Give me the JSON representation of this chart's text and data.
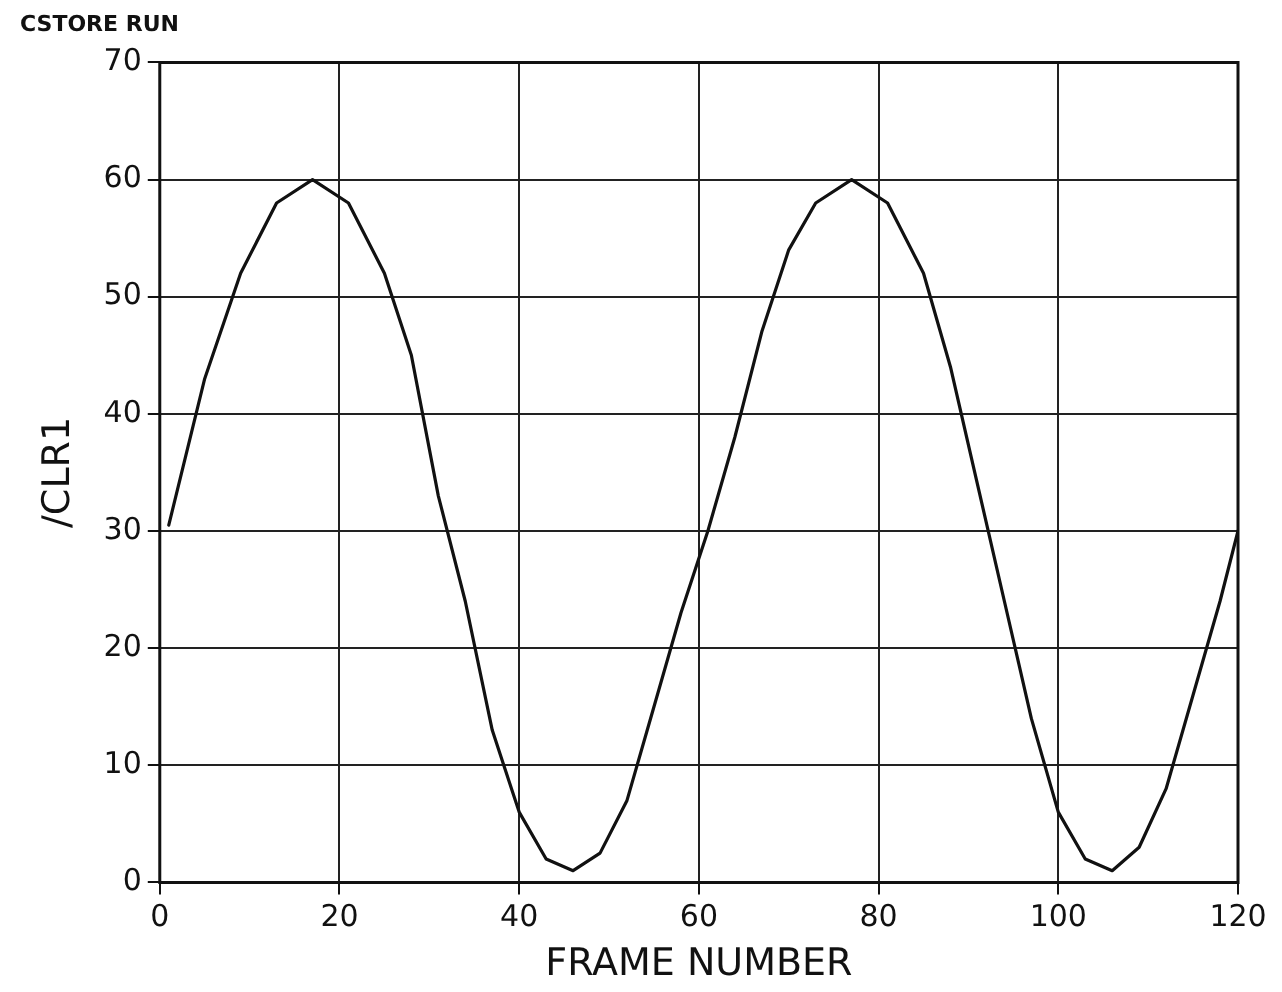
{
  "chart_data": {
    "type": "line",
    "title": "CSTORE RUN",
    "xlabel": "FRAME NUMBER",
    "ylabel": "/CLR1",
    "xlim": [
      0,
      120
    ],
    "xticks": [
      0,
      20,
      40,
      60,
      80,
      100,
      120
    ],
    "ylim": [
      0,
      70
    ],
    "yticks": [
      0,
      10,
      20,
      30,
      40,
      50,
      60,
      70
    ],
    "grid": true,
    "marker": "none",
    "line_style": "solid",
    "series": [
      {
        "color": "#111111",
        "x": [
          1,
          5,
          9,
          13,
          17,
          21,
          25,
          28,
          31,
          34,
          37,
          40,
          43,
          46,
          49,
          52,
          55,
          58,
          61,
          64,
          67,
          70,
          73,
          77,
          81,
          85,
          88,
          91,
          94,
          97,
          100,
          103,
          106,
          109,
          112,
          115,
          118,
          120
        ],
        "values": [
          30.5,
          43,
          52,
          58,
          60,
          58,
          52,
          45,
          33,
          24,
          13,
          6,
          2,
          1,
          2.5,
          7,
          15,
          23,
          30,
          38,
          47,
          54,
          58,
          60,
          58,
          52,
          44,
          34,
          24,
          14,
          6,
          2,
          1,
          3,
          8,
          16,
          24,
          30
        ]
      }
    ]
  }
}
